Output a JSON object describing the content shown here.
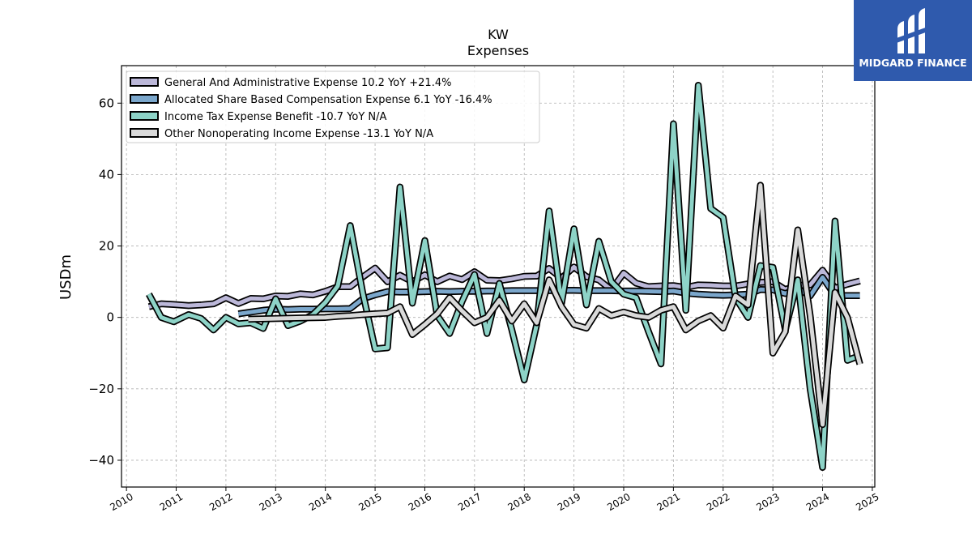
{
  "brand": {
    "name": "MIDGARD FINANCE",
    "logo_icon": "midgard-logo-icon",
    "background": "#2f5aad"
  },
  "chart_data": {
    "type": "line",
    "title": "KW",
    "subtitle": "Expenses",
    "ylabel": "USDm",
    "xlabel": "",
    "xlim": [
      2009.9,
      2025.05
    ],
    "ylim": [
      -47.5,
      70.5
    ],
    "xticks": [
      "2010",
      "2011",
      "2012",
      "2013",
      "2014",
      "2015",
      "2016",
      "2017",
      "2018",
      "2019",
      "2020",
      "2021",
      "2022",
      "2023",
      "2024",
      "2025"
    ],
    "yticks": [
      -40,
      -20,
      0,
      20,
      40,
      60
    ],
    "ytick_labels": [
      "−40",
      "−20",
      "0",
      "20",
      "40",
      "60"
    ],
    "grid": true,
    "legend_position": "top-left",
    "series": [
      {
        "name": "General And Administrative Expense  10.2 YoY +21.4%",
        "color": "#bcb8d9",
        "x": [
          2010.45,
          2010.7,
          2010.95,
          2011.25,
          2011.5,
          2011.75,
          2012.0,
          2012.25,
          2012.5,
          2012.75,
          2013.0,
          2013.25,
          2013.5,
          2013.75,
          2014.0,
          2014.25,
          2014.5,
          2014.75,
          2015.0,
          2015.25,
          2015.5,
          2015.75,
          2016.0,
          2016.25,
          2016.5,
          2016.75,
          2017.0,
          2017.25,
          2017.5,
          2017.75,
          2018.0,
          2018.25,
          2018.5,
          2018.75,
          2019.0,
          2019.25,
          2019.5,
          2019.75,
          2020.0,
          2020.25,
          2020.5,
          2020.75,
          2021.0,
          2021.25,
          2021.5,
          2021.75,
          2022.0,
          2022.25,
          2022.5,
          2022.75,
          2023.0,
          2023.25,
          2023.5,
          2023.75,
          2024.0,
          2024.25,
          2024.5,
          2024.75
        ],
        "y": [
          3.0,
          3.8,
          3.6,
          3.3,
          3.5,
          3.8,
          5.5,
          3.9,
          5.3,
          5.2,
          6.0,
          5.9,
          6.6,
          6.3,
          7.3,
          8.6,
          8.6,
          11.3,
          13.8,
          10.0,
          11.8,
          10.0,
          11.9,
          10.0,
          11.6,
          10.6,
          12.8,
          10.4,
          10.3,
          10.8,
          11.5,
          11.6,
          13.7,
          11.0,
          14.1,
          11.4,
          10.5,
          7.7,
          12.4,
          9.6,
          8.6,
          8.8,
          8.9,
          8.4,
          9.1,
          9.0,
          8.8,
          8.8,
          9.4,
          9.8,
          10.0,
          7.8,
          9.0,
          9.1,
          13.2,
          8.2,
          9.3,
          10.2
        ]
      },
      {
        "name": "Allocated Share Based Compensation Expense  6.1 YoY -16.4%",
        "color": "#7ba7cc",
        "x": [
          2012.25,
          2012.5,
          2012.75,
          2013.0,
          2013.25,
          2013.5,
          2013.75,
          2014.0,
          2014.25,
          2014.5,
          2014.75,
          2015.0,
          2015.25,
          2015.5,
          2015.75,
          2016.0,
          2016.25,
          2016.5,
          2016.75,
          2017.0,
          2017.25,
          2017.5,
          2017.75,
          2018.0,
          2018.25,
          2018.5,
          2018.75,
          2019.0,
          2019.25,
          2019.5,
          2019.75,
          2020.0,
          2020.25,
          2020.5,
          2020.75,
          2021.0,
          2021.25,
          2021.5,
          2021.75,
          2022.0,
          2022.25,
          2022.5,
          2022.75,
          2023.0,
          2023.25,
          2023.5,
          2023.75,
          2024.0,
          2024.25,
          2024.5,
          2024.75
        ],
        "y": [
          1.0,
          1.5,
          2.0,
          2.3,
          2.2,
          2.3,
          2.3,
          2.4,
          2.4,
          2.5,
          5.2,
          6.3,
          7.2,
          7.1,
          7.1,
          7.2,
          7.3,
          7.2,
          7.3,
          7.3,
          7.4,
          7.4,
          7.5,
          7.5,
          7.5,
          7.5,
          7.6,
          7.6,
          7.5,
          7.5,
          7.5,
          7.4,
          7.4,
          7.3,
          7.2,
          7.4,
          6.8,
          6.5,
          6.3,
          6.2,
          6.3,
          6.5,
          7.8,
          7.7,
          6.7,
          8.0,
          6.0,
          11.2,
          6.1,
          6.1,
          6.1
        ]
      },
      {
        "name": "Income Tax Expense Benefit  -10.7 YoY N/A",
        "color": "#8dd3c7",
        "x": [
          2010.45,
          2010.7,
          2010.95,
          2011.25,
          2011.5,
          2011.75,
          2012.0,
          2012.25,
          2012.5,
          2012.75,
          2013.0,
          2013.25,
          2013.5,
          2013.75,
          2014.0,
          2014.25,
          2014.5,
          2014.75,
          2015.0,
          2015.25,
          2015.5,
          2015.75,
          2016.0,
          2016.25,
          2016.5,
          2016.75,
          2017.0,
          2017.25,
          2017.5,
          2017.75,
          2018.0,
          2018.25,
          2018.5,
          2018.75,
          2019.0,
          2019.25,
          2019.5,
          2019.75,
          2020.0,
          2020.25,
          2020.5,
          2020.75,
          2021.0,
          2021.25,
          2021.5,
          2021.75,
          2022.0,
          2022.25,
          2022.5,
          2022.75,
          2023.0,
          2023.25,
          2023.5,
          2023.75,
          2024.0,
          2024.25,
          2024.5,
          2024.75
        ],
        "y": [
          6.5,
          0.0,
          -1.2,
          0.8,
          -0.3,
          -3.5,
          0.0,
          -1.8,
          -1.5,
          -3.1,
          5.2,
          -2.3,
          -1.0,
          0.8,
          4.2,
          8.8,
          25.7,
          7.0,
          -8.8,
          -8.5,
          36.5,
          4.0,
          21.5,
          0.5,
          -4.5,
          4.5,
          12.0,
          -4.5,
          9.5,
          -3.5,
          -17.5,
          -2.0,
          29.8,
          4.0,
          24.8,
          3.5,
          21.3,
          10.0,
          6.5,
          5.5,
          -4.0,
          -13.0,
          54.2,
          2.0,
          65.0,
          30.5,
          28.0,
          5.5,
          0.0,
          14.5,
          14.0,
          -3.5,
          10.5,
          -20.0,
          -42.0,
          27.0,
          -12.0,
          -10.7
        ]
      },
      {
        "name": "Other Nonoperating Income Expense  -13.1 YoY N/A",
        "color": "#d9d9d9",
        "x": [
          2012.45,
          2014.0,
          2014.25,
          2014.5,
          2014.75,
          2015.0,
          2015.25,
          2015.5,
          2015.75,
          2016.0,
          2016.25,
          2016.5,
          2016.75,
          2017.0,
          2017.25,
          2017.5,
          2017.75,
          2018.0,
          2018.25,
          2018.5,
          2018.75,
          2019.0,
          2019.25,
          2019.5,
          2019.75,
          2020.0,
          2020.25,
          2020.5,
          2020.75,
          2021.0,
          2021.25,
          2021.5,
          2021.75,
          2022.0,
          2022.25,
          2022.5,
          2022.75,
          2023.0,
          2023.25,
          2023.5,
          2023.75,
          2024.0,
          2024.25,
          2024.5,
          2024.75
        ],
        "y": [
          -0.5,
          0.0,
          0.3,
          0.5,
          0.8,
          1.0,
          1.2,
          3.0,
          -4.8,
          -2.0,
          1.0,
          5.5,
          1.8,
          -1.5,
          0.0,
          4.8,
          -1.0,
          3.8,
          -1.5,
          10.5,
          3.0,
          -2.0,
          -3.0,
          2.5,
          0.5,
          1.5,
          0.5,
          0.0,
          2.0,
          3.0,
          -3.5,
          -1.0,
          0.5,
          -3.0,
          6.0,
          3.5,
          37.0,
          -10.0,
          -4.0,
          24.5,
          0.5,
          -30.0,
          7.0,
          0.0,
          -13.1
        ]
      }
    ]
  }
}
